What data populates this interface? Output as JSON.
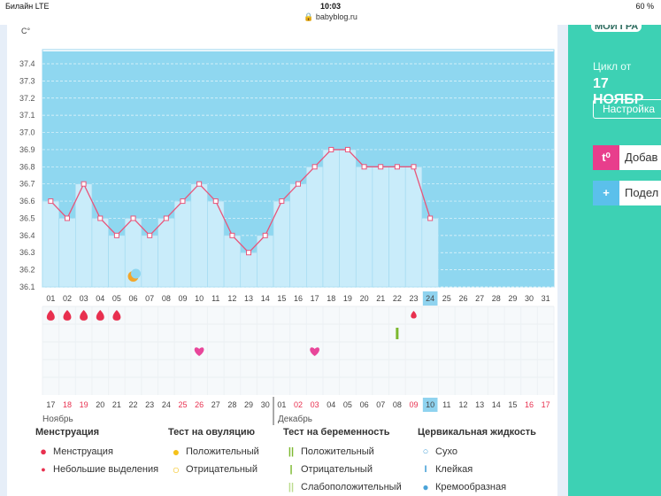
{
  "status_bar": {
    "carrier": "Билайн  LTE",
    "time": "10:03",
    "battery": "60 %",
    "url": "babyblog.ru"
  },
  "right_panel": {
    "top_label": "МОЙ ГРА",
    "cycle_label": "Цикл от",
    "cycle_date": "17 НОЯБР",
    "settings_button": "Настройка",
    "add_button": "Добав",
    "share_button": "Подел",
    "add_icon": "t⁰",
    "share_icon": "+"
  },
  "chart_data": {
    "type": "line",
    "title": "",
    "ylabel": "C°",
    "ylim": [
      36.1,
      37.4
    ],
    "yticks": [
      "37.4",
      "37.3",
      "37.2",
      "37.1",
      "37.0",
      "36.9",
      "36.8",
      "36.7",
      "36.6",
      "36.5",
      "36.4",
      "36.3",
      "36.2",
      "36.1"
    ],
    "cycle_days": [
      "01",
      "02",
      "03",
      "04",
      "05",
      "06",
      "07",
      "08",
      "09",
      "10",
      "11",
      "12",
      "13",
      "14",
      "15",
      "16",
      "17",
      "18",
      "19",
      "20",
      "21",
      "22",
      "23",
      "24",
      "25",
      "26",
      "27",
      "28",
      "29",
      "30",
      "31"
    ],
    "temperatures": [
      36.6,
      36.5,
      36.7,
      36.5,
      36.4,
      36.5,
      36.4,
      36.5,
      36.6,
      36.7,
      36.6,
      36.4,
      36.3,
      36.4,
      36.6,
      36.7,
      36.8,
      36.9,
      36.9,
      36.8,
      36.8,
      36.8,
      36.8,
      36.5
    ],
    "current_day": "24",
    "calendar_dates": [
      "17",
      "18",
      "19",
      "20",
      "21",
      "22",
      "23",
      "24",
      "25",
      "26",
      "27",
      "28",
      "29",
      "30",
      "01",
      "02",
      "03",
      "04",
      "05",
      "06",
      "07",
      "08",
      "09",
      "10",
      "11",
      "12",
      "13",
      "14",
      "15",
      "16",
      "17"
    ],
    "weekend_dates": [
      "18",
      "19",
      "25",
      "26",
      "02",
      "03",
      "09",
      "16",
      "17"
    ],
    "current_date": "10",
    "month_1": "Ноябрь",
    "month_2": "Декабрь",
    "menstruation_days": [
      1,
      2,
      3,
      4,
      5
    ],
    "light_spotting_days": [
      23
    ],
    "pregnancy_test_days": [
      22
    ],
    "heart_days": [
      10,
      17
    ],
    "moon_day": 6,
    "colors": {
      "plot_bg": "#8fd7f0",
      "bar": "#c9ecfa",
      "line": "#e8557a",
      "accent": "#3dd1b4",
      "red": "#e8304f"
    }
  },
  "legend": {
    "menstruation_title": "Менструация",
    "menstruation_item": "Менструация",
    "spotting_item": "Небольшие выделения",
    "ovulation_title": "Тест на овуляцию",
    "ov_positive": "Положительный",
    "ov_negative": "Отрицательный",
    "pregnancy_title": "Тест на беременность",
    "pr_positive": "Положительный",
    "pr_negative": "Отрицательный",
    "pr_weak": "Слабоположительный",
    "cervical_title": "Цервикальная жидкость",
    "cv_dry": "Сухо",
    "cv_sticky": "Клейкая",
    "cv_creamy": "Кремообразная"
  }
}
